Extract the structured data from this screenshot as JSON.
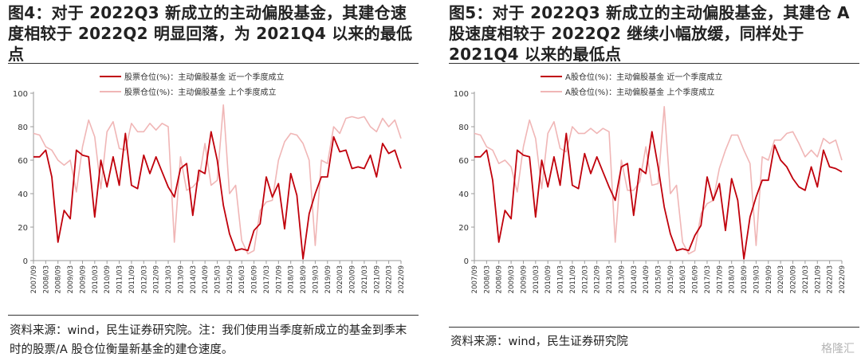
{
  "left": {
    "title": "图4：对于 2022Q3 新成立的主动偏股基金，其建仓速度相较于 2022Q2 明显回落，为 2021Q4 以来的最低点",
    "source": "资料来源：wind，民生证券研究院。注：我们使用当季度新成立的基金到季末时的股票/A 股仓位衡量新基金的建仓速度。"
  },
  "right": {
    "title": "图5：对于 2022Q3 新成立的主动偏股基金，其建仓 A 股速度相较于  2022Q2  继续小幅放缓，同样处于 2021Q4 以来的最低点",
    "source": "资料来源：wind，民生证券研究院"
  },
  "watermark": "格隆汇",
  "colors": {
    "current": "#c0000b",
    "previous": "#f0b6b6",
    "axis": "#9a9a9a"
  },
  "chart_data": [
    {
      "type": "line",
      "categories": [
        "2007/09",
        "2007/12",
        "2008/03",
        "2008/06",
        "2008/09",
        "2008/12",
        "2009/03",
        "2009/06",
        "2009/09",
        "2009/12",
        "2010/03",
        "2010/06",
        "2010/09",
        "2010/12",
        "2011/03",
        "2011/06",
        "2011/09",
        "2011/12",
        "2012/03",
        "2012/06",
        "2012/09",
        "2012/12",
        "2013/03",
        "2013/06",
        "2013/09",
        "2013/12",
        "2014/03",
        "2014/06",
        "2014/09",
        "2014/12",
        "2015/03",
        "2015/06",
        "2015/09",
        "2015/12",
        "2016/03",
        "2016/06",
        "2016/09",
        "2016/12",
        "2017/03",
        "2017/06",
        "2017/09",
        "2017/12",
        "2018/03",
        "2018/06",
        "2018/09",
        "2018/12",
        "2019/03",
        "2019/06",
        "2019/09",
        "2019/12",
        "2020/03",
        "2020/06",
        "2020/09",
        "2020/12",
        "2021/03",
        "2021/06",
        "2021/09",
        "2021/12",
        "2022/03",
        "2022/06",
        "2022/09"
      ],
      "tick_labels": [
        "2007/09",
        "2008/03",
        "2008/09",
        "2009/03",
        "2009/09",
        "2010/03",
        "2010/09",
        "2011/03",
        "2011/09",
        "2012/03",
        "2012/09",
        "2013/03",
        "2013/09",
        "2014/03",
        "2014/09",
        "2015/03",
        "2015/09",
        "2016/03",
        "2016/09",
        "2017/03",
        "2017/09",
        "2018/03",
        "2018/09",
        "2019/03",
        "2019/09",
        "2020/03",
        "2020/09",
        "2021/03",
        "2021/09",
        "2022/03",
        "2022/09"
      ],
      "ylim": [
        0,
        100
      ],
      "yticks": [
        0,
        20,
        40,
        60,
        80,
        100
      ],
      "legend_position": "top",
      "series": [
        {
          "name": "股票仓位(%)：主动偏股基金 近一个季度成立",
          "role": "current",
          "values": [
            62,
            62,
            66,
            50,
            11,
            30,
            25,
            66,
            63,
            62,
            26,
            60,
            44,
            62,
            45,
            76,
            45,
            43,
            63,
            52,
            62,
            53,
            44,
            38,
            55,
            58,
            27,
            54,
            52,
            77,
            60,
            33,
            16,
            6,
            7,
            6,
            18,
            22,
            50,
            38,
            46,
            19,
            52,
            39,
            1,
            28,
            40,
            50,
            50,
            74,
            65,
            66,
            55,
            56,
            55,
            63,
            50,
            70,
            64,
            66,
            55
          ]
        },
        {
          "name": "股票仓位(%)：主动偏股基金 上个季度成立",
          "role": "previous",
          "values": [
            76,
            75,
            68,
            66,
            60,
            57,
            60,
            41,
            68,
            84,
            74,
            43,
            77,
            83,
            67,
            66,
            82,
            77,
            77,
            82,
            78,
            82,
            80,
            11,
            62,
            42,
            44,
            48,
            70,
            45,
            48,
            93,
            40,
            45,
            12,
            4,
            6,
            30,
            35,
            36,
            60,
            71,
            76,
            75,
            70,
            60,
            9,
            60,
            58,
            80,
            76,
            85,
            86,
            85,
            86,
            80,
            77,
            85,
            80,
            84,
            73
          ]
        }
      ]
    },
    {
      "type": "line",
      "categories": [
        "2007/09",
        "2007/12",
        "2008/03",
        "2008/06",
        "2008/09",
        "2008/12",
        "2009/03",
        "2009/06",
        "2009/09",
        "2009/12",
        "2010/03",
        "2010/06",
        "2010/09",
        "2010/12",
        "2011/03",
        "2011/06",
        "2011/09",
        "2011/12",
        "2012/03",
        "2012/06",
        "2012/09",
        "2012/12",
        "2013/03",
        "2013/06",
        "2013/09",
        "2013/12",
        "2014/03",
        "2014/06",
        "2014/09",
        "2014/12",
        "2015/03",
        "2015/06",
        "2015/09",
        "2015/12",
        "2016/03",
        "2016/06",
        "2016/09",
        "2016/12",
        "2017/03",
        "2017/06",
        "2017/09",
        "2017/12",
        "2018/03",
        "2018/06",
        "2018/09",
        "2018/12",
        "2019/03",
        "2019/06",
        "2019/09",
        "2019/12",
        "2020/03",
        "2020/06",
        "2020/09",
        "2020/12",
        "2021/03",
        "2021/06",
        "2021/09",
        "2021/12",
        "2022/03",
        "2022/06",
        "2022/09"
      ],
      "tick_labels": [
        "2007/09",
        "2008/03",
        "2008/09",
        "2009/03",
        "2009/09",
        "2010/03",
        "2010/09",
        "2011/03",
        "2011/09",
        "2012/03",
        "2012/09",
        "2013/03",
        "2013/09",
        "2014/03",
        "2014/09",
        "2015/03",
        "2015/09",
        "2016/03",
        "2016/09",
        "2017/03",
        "2017/09",
        "2018/03",
        "2018/09",
        "2019/03",
        "2019/09",
        "2020/03",
        "2020/09",
        "2021/03",
        "2021/09",
        "2022/03",
        "2022/09"
      ],
      "ylim": [
        0,
        100
      ],
      "yticks": [
        0,
        20,
        40,
        60,
        80,
        100
      ],
      "legend_position": "top",
      "series": [
        {
          "name": "A股仓位(%)：主动偏股基金 近一个季度成立",
          "role": "current",
          "values": [
            62,
            62,
            66,
            48,
            11,
            30,
            25,
            66,
            63,
            62,
            26,
            60,
            44,
            62,
            45,
            76,
            45,
            43,
            64,
            52,
            62,
            53,
            44,
            36,
            56,
            58,
            27,
            55,
            52,
            77,
            56,
            32,
            16,
            6,
            7,
            6,
            15,
            21,
            50,
            36,
            46,
            18,
            49,
            36,
            1,
            26,
            38,
            48,
            48,
            69,
            60,
            56,
            49,
            44,
            42,
            56,
            44,
            66,
            56,
            55,
            53
          ]
        },
        {
          "name": "A股仓位(%)：主动偏股基金 上个季度成立",
          "role": "previous",
          "values": [
            76,
            75,
            68,
            66,
            58,
            60,
            56,
            41,
            68,
            84,
            73,
            43,
            76,
            83,
            67,
            65,
            80,
            76,
            76,
            79,
            76,
            79,
            77,
            11,
            60,
            42,
            42,
            47,
            68,
            45,
            46,
            92,
            40,
            45,
            11,
            4,
            6,
            28,
            34,
            36,
            55,
            66,
            75,
            75,
            66,
            58,
            9,
            62,
            60,
            72,
            72,
            76,
            77,
            70,
            62,
            66,
            62,
            73,
            70,
            72,
            60
          ]
        }
      ]
    }
  ]
}
